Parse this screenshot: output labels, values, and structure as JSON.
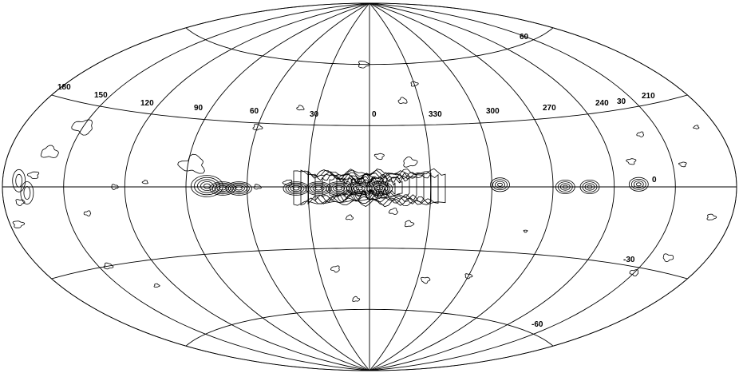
{
  "map": {
    "projection": "aitoff",
    "line_color": "#000000",
    "background": "#ffffff",
    "longitude_labels": [
      "180",
      "150",
      "120",
      "90",
      "60",
      "30",
      "0",
      "330",
      "300",
      "270",
      "240",
      "210"
    ],
    "longitude_label_30_right": "30",
    "latitude_labels": {
      "lat_60": "60",
      "lat_0": "0",
      "lat_m30": "-30",
      "lat_m60": "-60"
    },
    "meridians_deg": [
      -180,
      -150,
      -120,
      -90,
      -60,
      -30,
      0,
      30,
      60,
      90,
      120,
      150,
      180
    ],
    "parallels_deg": [
      -60,
      -30,
      0,
      30,
      60
    ],
    "contour_peaks_lon_deg": [
      -5,
      5,
      15,
      25,
      36,
      64,
      72
    ]
  }
}
